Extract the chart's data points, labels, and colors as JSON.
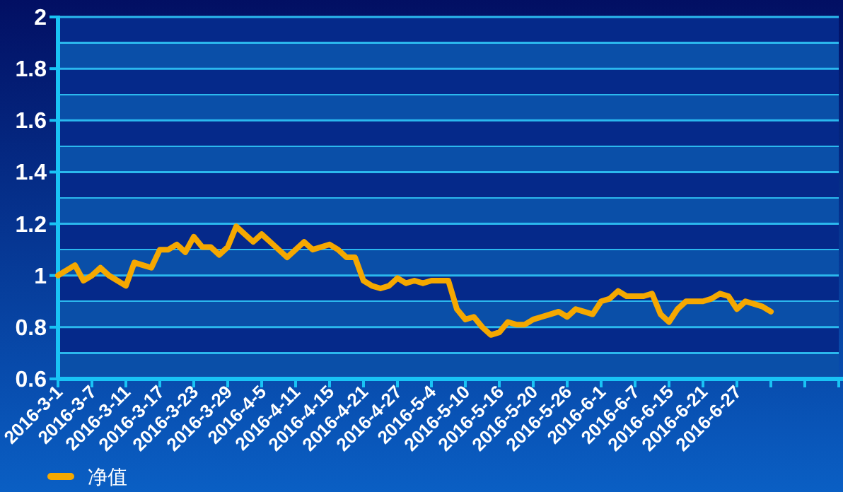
{
  "chart_data": {
    "type": "line",
    "categories": [
      "2016-3-1",
      null,
      null,
      null,
      "2016-3-7",
      null,
      null,
      null,
      "2016-3-11",
      null,
      null,
      null,
      "2016-3-17",
      null,
      null,
      null,
      "2016-3-23",
      null,
      null,
      null,
      "2016-3-29",
      null,
      null,
      null,
      "2016-4-5",
      null,
      null,
      null,
      "2016-4-11",
      null,
      null,
      null,
      "2016-4-15",
      null,
      null,
      null,
      "2016-4-21",
      null,
      null,
      null,
      "2016-4-27",
      null,
      null,
      null,
      "2016-5-4",
      null,
      null,
      null,
      "2016-5-10",
      null,
      null,
      null,
      "2016-5-16",
      null,
      null,
      null,
      "2016-5-20",
      null,
      null,
      null,
      "2016-5-26",
      null,
      null,
      null,
      "2016-6-1",
      null,
      null,
      null,
      "2016-6-7",
      null,
      null,
      null,
      "2016-6-15",
      null,
      null,
      null,
      "2016-6-21",
      null,
      null,
      null,
      "2016-6-27",
      null,
      null,
      null,
      null,
      null,
      null,
      null,
      null,
      null,
      null,
      null,
      null
    ],
    "series": [
      {
        "name": "净值",
        "color": "#f5a800",
        "values": [
          1.0,
          1.02,
          1.04,
          0.98,
          1.0,
          1.03,
          1.0,
          0.98,
          0.96,
          1.05,
          1.04,
          1.03,
          1.1,
          1.1,
          1.12,
          1.09,
          1.15,
          1.11,
          1.11,
          1.08,
          1.11,
          1.19,
          1.16,
          1.13,
          1.16,
          1.13,
          1.1,
          1.07,
          1.1,
          1.13,
          1.1,
          1.11,
          1.12,
          1.1,
          1.07,
          1.07,
          0.98,
          0.96,
          0.95,
          0.96,
          0.99,
          0.97,
          0.98,
          0.97,
          0.98,
          0.98,
          0.98,
          0.87,
          0.83,
          0.84,
          0.8,
          0.77,
          0.78,
          0.82,
          0.81,
          0.81,
          0.83,
          0.84,
          0.85,
          0.86,
          0.84,
          0.87,
          0.86,
          0.85,
          0.9,
          0.91,
          0.94,
          0.92,
          0.92,
          0.92,
          0.93,
          0.85,
          0.82,
          0.87,
          0.9,
          0.9,
          0.9,
          0.91,
          0.93,
          0.92,
          0.87,
          0.9,
          0.89,
          0.88,
          0.86,
          null,
          null,
          null,
          null,
          null,
          null,
          null,
          null
        ]
      }
    ],
    "ylim": [
      0.6,
      2
    ],
    "yticks": [
      0.6,
      0.8,
      1,
      1.2,
      1.4,
      1.6,
      1.8,
      2
    ],
    "grid": "y",
    "legend": "bottom left"
  }
}
